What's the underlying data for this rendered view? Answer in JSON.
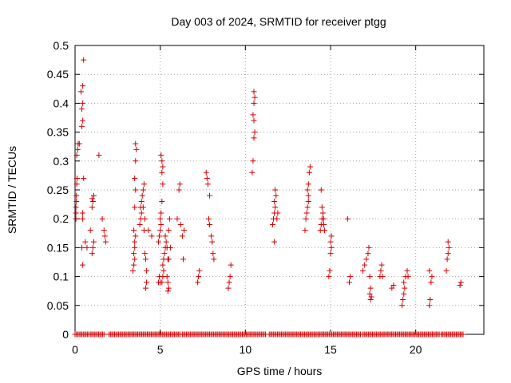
{
  "chart_data": {
    "type": "scatter",
    "title": "Day 003 of 2024, SRMTID for receiver ptgg",
    "xlabel": "GPS time / hours",
    "ylabel": "SRMTID / TECUs",
    "xlim": [
      0,
      24
    ],
    "ylim": [
      0,
      0.5
    ],
    "xticks": [
      0,
      5,
      10,
      15,
      20
    ],
    "yticks": [
      0,
      0.05,
      0.1,
      0.15,
      0.2,
      0.25,
      0.3,
      0.35,
      0.4,
      0.45,
      0.5
    ],
    "ytick_labels": [
      "0",
      "0.05",
      "0.1",
      "0.15",
      "0.2",
      "0.25",
      "0.3",
      "0.35",
      "0.4",
      "0.45",
      "0.5"
    ],
    "grid": true,
    "marker": "+",
    "color": "#d40000",
    "series": [
      {
        "name": "SRMTID",
        "points": [
          [
            0.05,
            0.2
          ],
          [
            0.05,
            0.21
          ],
          [
            0.05,
            0.22
          ],
          [
            0.08,
            0.23
          ],
          [
            0.08,
            0.24
          ],
          [
            0.1,
            0.26
          ],
          [
            0.12,
            0.27
          ],
          [
            0.1,
            0.31
          ],
          [
            0.15,
            0.32
          ],
          [
            0.18,
            0.33
          ],
          [
            0.25,
            0.33
          ],
          [
            0.4,
            0.36
          ],
          [
            0.45,
            0.37
          ],
          [
            0.4,
            0.39
          ],
          [
            0.45,
            0.4
          ],
          [
            0.35,
            0.42
          ],
          [
            0.45,
            0.43
          ],
          [
            0.5,
            0.475
          ],
          [
            0.45,
            0.2
          ],
          [
            0.45,
            0.21
          ],
          [
            0.4,
            0.15
          ],
          [
            0.45,
            0.12
          ],
          [
            0.5,
            0.27
          ],
          [
            0.6,
            0.16
          ],
          [
            0.7,
            0.15
          ],
          [
            0.9,
            0.18
          ],
          [
            1.0,
            0.14
          ],
          [
            1.05,
            0.15
          ],
          [
            1.1,
            0.16
          ],
          [
            1.0,
            0.22
          ],
          [
            1.05,
            0.23
          ],
          [
            1.1,
            0.24
          ],
          [
            1.0,
            0.235
          ],
          [
            1.4,
            0.31
          ],
          [
            1.6,
            0.2
          ],
          [
            1.7,
            0.18
          ],
          [
            1.75,
            0.17
          ],
          [
            1.8,
            0.16
          ],
          [
            3.4,
            0.11
          ],
          [
            3.45,
            0.12
          ],
          [
            3.5,
            0.13
          ],
          [
            3.45,
            0.14
          ],
          [
            3.5,
            0.15
          ],
          [
            3.5,
            0.16
          ],
          [
            3.55,
            0.17
          ],
          [
            3.45,
            0.18
          ],
          [
            3.5,
            0.22
          ],
          [
            3.55,
            0.25
          ],
          [
            3.5,
            0.27
          ],
          [
            3.55,
            0.3
          ],
          [
            3.6,
            0.32
          ],
          [
            3.55,
            0.33
          ],
          [
            3.8,
            0.19
          ],
          [
            3.85,
            0.2
          ],
          [
            3.9,
            0.21
          ],
          [
            3.85,
            0.22
          ],
          [
            3.9,
            0.23
          ],
          [
            3.95,
            0.24
          ],
          [
            4.0,
            0.25
          ],
          [
            4.05,
            0.26
          ],
          [
            4.0,
            0.22
          ],
          [
            4.1,
            0.2
          ],
          [
            4.05,
            0.18
          ],
          [
            4.1,
            0.14
          ],
          [
            4.15,
            0.13
          ],
          [
            4.2,
            0.11
          ],
          [
            4.15,
            0.08
          ],
          [
            4.2,
            0.09
          ],
          [
            4.3,
            0.18
          ],
          [
            4.5,
            0.17
          ],
          [
            4.9,
            0.16
          ],
          [
            4.95,
            0.17
          ],
          [
            5.0,
            0.18
          ],
          [
            5.05,
            0.19
          ],
          [
            5.0,
            0.2
          ],
          [
            5.05,
            0.21
          ],
          [
            5.1,
            0.23
          ],
          [
            5.15,
            0.26
          ],
          [
            5.1,
            0.28
          ],
          [
            5.15,
            0.29
          ],
          [
            5.1,
            0.3
          ],
          [
            5.05,
            0.31
          ],
          [
            5.1,
            0.09
          ],
          [
            5.15,
            0.1
          ],
          [
            5.2,
            0.11
          ],
          [
            5.15,
            0.12
          ],
          [
            5.2,
            0.13
          ],
          [
            5.25,
            0.14
          ],
          [
            5.3,
            0.15
          ],
          [
            5.35,
            0.16
          ],
          [
            5.3,
            0.17
          ],
          [
            5.4,
            0.15
          ],
          [
            5.45,
            0.13
          ],
          [
            5.4,
            0.1
          ],
          [
            5.45,
            0.09
          ],
          [
            5.5,
            0.08
          ],
          [
            5.45,
            0.075
          ],
          [
            4.9,
            0.09
          ],
          [
            4.95,
            0.1
          ],
          [
            5.0,
            0.09
          ],
          [
            5.5,
            0.18
          ],
          [
            5.55,
            0.2
          ],
          [
            5.6,
            0.15
          ],
          [
            5.5,
            0.13
          ],
          [
            6.0,
            0.2
          ],
          [
            6.1,
            0.25
          ],
          [
            6.15,
            0.26
          ],
          [
            6.2,
            0.19
          ],
          [
            6.3,
            0.17
          ],
          [
            6.35,
            0.13
          ],
          [
            6.4,
            0.18
          ],
          [
            7.2,
            0.09
          ],
          [
            7.25,
            0.1
          ],
          [
            7.3,
            0.11
          ],
          [
            7.7,
            0.28
          ],
          [
            7.75,
            0.27
          ],
          [
            7.8,
            0.26
          ],
          [
            7.9,
            0.24
          ],
          [
            7.85,
            0.2
          ],
          [
            7.9,
            0.19
          ],
          [
            8.0,
            0.17
          ],
          [
            8.05,
            0.16
          ],
          [
            8.1,
            0.14
          ],
          [
            8.15,
            0.13
          ],
          [
            9.0,
            0.08
          ],
          [
            9.05,
            0.09
          ],
          [
            9.1,
            0.1
          ],
          [
            9.15,
            0.12
          ],
          [
            10.4,
            0.28
          ],
          [
            10.45,
            0.3
          ],
          [
            10.5,
            0.34
          ],
          [
            10.55,
            0.35
          ],
          [
            10.5,
            0.37
          ],
          [
            10.45,
            0.38
          ],
          [
            10.5,
            0.4
          ],
          [
            10.55,
            0.41
          ],
          [
            10.5,
            0.42
          ],
          [
            11.6,
            0.19
          ],
          [
            11.65,
            0.2
          ],
          [
            11.7,
            0.21
          ],
          [
            11.75,
            0.22
          ],
          [
            11.7,
            0.23
          ],
          [
            11.8,
            0.24
          ],
          [
            11.75,
            0.25
          ],
          [
            11.7,
            0.16
          ],
          [
            11.85,
            0.2
          ],
          [
            11.9,
            0.21
          ],
          [
            13.5,
            0.18
          ],
          [
            13.55,
            0.2
          ],
          [
            13.6,
            0.21
          ],
          [
            13.65,
            0.22
          ],
          [
            13.7,
            0.23
          ],
          [
            13.65,
            0.25
          ],
          [
            13.7,
            0.26
          ],
          [
            13.75,
            0.28
          ],
          [
            13.8,
            0.29
          ],
          [
            13.7,
            0.24
          ],
          [
            14.4,
            0.18
          ],
          [
            14.45,
            0.19
          ],
          [
            14.5,
            0.2
          ],
          [
            14.55,
            0.21
          ],
          [
            14.5,
            0.22
          ],
          [
            14.45,
            0.25
          ],
          [
            14.6,
            0.19
          ],
          [
            14.65,
            0.18
          ],
          [
            14.6,
            0.2
          ],
          [
            14.9,
            0.1
          ],
          [
            14.95,
            0.11
          ],
          [
            15.0,
            0.14
          ],
          [
            15.05,
            0.15
          ],
          [
            15.0,
            0.16
          ],
          [
            15.05,
            0.17
          ],
          [
            16.0,
            0.2
          ],
          [
            16.1,
            0.09
          ],
          [
            16.15,
            0.1
          ],
          [
            16.9,
            0.11
          ],
          [
            17.0,
            0.12
          ],
          [
            17.1,
            0.13
          ],
          [
            17.2,
            0.14
          ],
          [
            17.25,
            0.15
          ],
          [
            17.3,
            0.1
          ],
          [
            17.35,
            0.08
          ],
          [
            17.3,
            0.07
          ],
          [
            17.35,
            0.06
          ],
          [
            17.4,
            0.065
          ],
          [
            17.9,
            0.1
          ],
          [
            17.95,
            0.11
          ],
          [
            18.0,
            0.12
          ],
          [
            18.05,
            0.1
          ],
          [
            18.6,
            0.08
          ],
          [
            18.7,
            0.085
          ],
          [
            19.2,
            0.05
          ],
          [
            19.25,
            0.06
          ],
          [
            19.3,
            0.07
          ],
          [
            19.35,
            0.08
          ],
          [
            19.3,
            0.09
          ],
          [
            19.4,
            0.1
          ],
          [
            19.5,
            0.11
          ],
          [
            19.55,
            0.1
          ],
          [
            20.8,
            0.05
          ],
          [
            20.85,
            0.06
          ],
          [
            20.9,
            0.09
          ],
          [
            20.95,
            0.1
          ],
          [
            20.8,
            0.11
          ],
          [
            21.8,
            0.11
          ],
          [
            21.85,
            0.13
          ],
          [
            21.9,
            0.14
          ],
          [
            21.95,
            0.15
          ],
          [
            21.9,
            0.16
          ],
          [
            22.6,
            0.085
          ],
          [
            22.65,
            0.09
          ]
        ]
      },
      {
        "name": "zero-baseline",
        "note": "dense markers at y = 0 spanning the observed time ranges",
        "x_ranges": [
          [
            0.0,
            0.8
          ],
          [
            0.9,
            1.7
          ],
          [
            2.0,
            6.2
          ],
          [
            6.3,
            11.2
          ],
          [
            11.4,
            16.8
          ],
          [
            16.9,
            21.4
          ],
          [
            21.5,
            22.8
          ]
        ],
        "y": 0,
        "step": 0.08
      }
    ]
  }
}
